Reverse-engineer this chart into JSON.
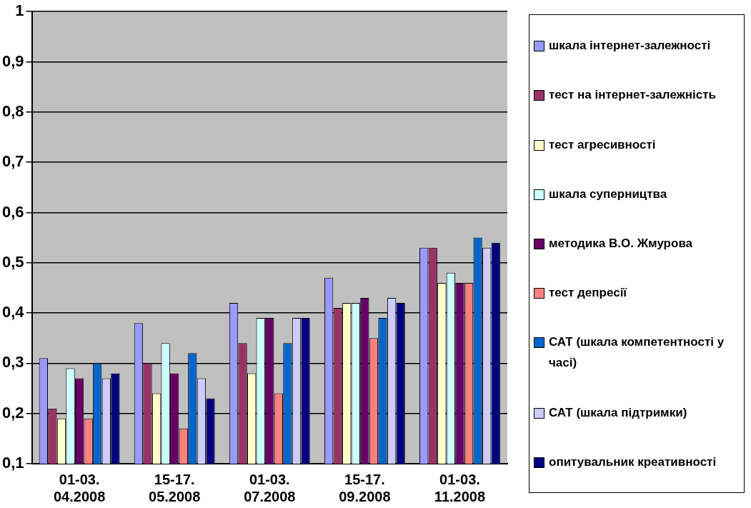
{
  "chart_data": {
    "type": "bar",
    "categories": [
      "01-03. 04.2008",
      "15-17. 05.2008",
      "01-03. 07.2008",
      "15-17. 09.2008",
      "01-03. 11.2008"
    ],
    "series": [
      {
        "name": "шкала інтернет-залежності",
        "color": "#9999ff",
        "values": [
          0.31,
          0.38,
          0.42,
          0.47,
          0.53
        ]
      },
      {
        "name": "тест на інтернет-залежність",
        "color": "#993366",
        "values": [
          0.21,
          0.3,
          0.34,
          0.41,
          0.53
        ]
      },
      {
        "name": "тест агресивності",
        "color": "#ffffcc",
        "values": [
          0.19,
          0.24,
          0.28,
          0.42,
          0.46
        ]
      },
      {
        "name": "шкала суперництва",
        "color": "#ccffff",
        "values": [
          0.29,
          0.34,
          0.39,
          0.42,
          0.48
        ]
      },
      {
        "name": "методика В.О. Жмурова",
        "color": "#660066",
        "values": [
          0.27,
          0.28,
          0.39,
          0.43,
          0.46
        ]
      },
      {
        "name": "тест депресії",
        "color": "#ff8080",
        "values": [
          0.19,
          0.17,
          0.24,
          0.35,
          0.46
        ]
      },
      {
        "name": "САТ (шкала компетентності у часі)",
        "color": "#0066cc",
        "values": [
          0.3,
          0.32,
          0.34,
          0.39,
          0.55
        ]
      },
      {
        "name": "САТ (шкала підтримки)",
        "color": "#ccccff",
        "values": [
          0.27,
          0.27,
          0.39,
          0.43,
          0.53
        ]
      },
      {
        "name": "опитувальник креативності",
        "color": "#000080",
        "values": [
          0.28,
          0.23,
          0.39,
          0.42,
          0.54
        ]
      }
    ],
    "ylim": [
      0.1,
      1
    ],
    "yticks": [
      {
        "value": 0.1,
        "label": "0,1"
      },
      {
        "value": 0.2,
        "label": "0,2"
      },
      {
        "value": 0.3,
        "label": "0,3"
      },
      {
        "value": 0.4,
        "label": "0,4"
      },
      {
        "value": 0.5,
        "label": "0,5"
      },
      {
        "value": 0.6,
        "label": "0,6"
      },
      {
        "value": 0.7,
        "label": "0,7"
      },
      {
        "value": 0.8,
        "label": "0,8"
      },
      {
        "value": 0.9,
        "label": "0,9"
      },
      {
        "value": 1,
        "label": "1"
      }
    ],
    "grid": "y",
    "legend": "right"
  }
}
